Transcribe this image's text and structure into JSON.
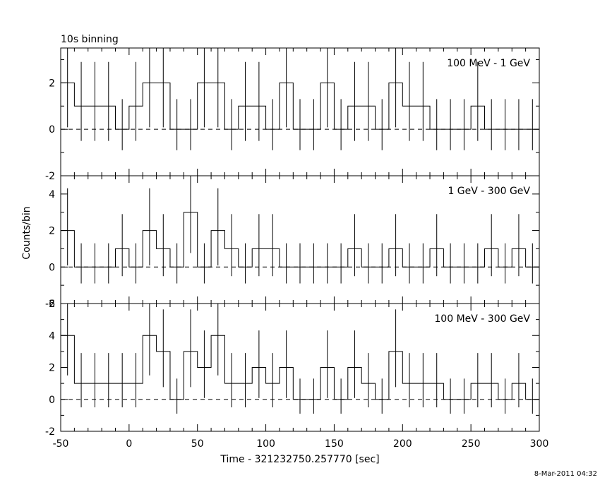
{
  "header": {
    "binning_label": "10s binning",
    "timestamp": "8-Mar-2011 04:32"
  },
  "chart_data": [
    {
      "type": "line",
      "panel_label": "100 MeV - 1 GeV",
      "ylim": [
        -2,
        3.5
      ],
      "yticks": [
        -2,
        0,
        2
      ],
      "x": [
        -45,
        -35,
        -25,
        -15,
        -5,
        5,
        15,
        25,
        35,
        45,
        55,
        65,
        75,
        85,
        95,
        105,
        115,
        125,
        135,
        145,
        155,
        165,
        175,
        185,
        195,
        205,
        215,
        225,
        235,
        245,
        255,
        265,
        275,
        285,
        295
      ],
      "values": [
        2,
        1,
        1,
        1,
        0,
        1,
        2,
        2,
        0,
        0,
        2,
        2,
        0,
        1,
        1,
        0,
        2,
        0,
        0,
        2,
        0,
        1,
        1,
        0,
        2,
        1,
        1,
        0,
        0,
        0,
        1,
        0,
        0,
        0,
        0
      ]
    },
    {
      "type": "line",
      "panel_label": "1 GeV - 300 GeV",
      "ylim": [
        -2,
        5
      ],
      "yticks": [
        -2,
        0,
        2,
        4
      ],
      "x": [
        -45,
        -35,
        -25,
        -15,
        -5,
        5,
        15,
        25,
        35,
        45,
        55,
        65,
        75,
        85,
        95,
        105,
        115,
        125,
        135,
        145,
        155,
        165,
        175,
        185,
        195,
        205,
        215,
        225,
        235,
        245,
        255,
        265,
        275,
        285,
        295
      ],
      "values": [
        2,
        0,
        0,
        0,
        1,
        0,
        2,
        1,
        0,
        3,
        0,
        2,
        1,
        0,
        1,
        1,
        0,
        0,
        0,
        0,
        0,
        1,
        0,
        0,
        1,
        0,
        0,
        1,
        0,
        0,
        0,
        1,
        0,
        1,
        0
      ]
    },
    {
      "type": "line",
      "panel_label": "100 MeV - 300 GeV",
      "ylim": [
        -2,
        6
      ],
      "yticks": [
        -2,
        0,
        2,
        4,
        6
      ],
      "x": [
        -45,
        -35,
        -25,
        -15,
        -5,
        5,
        15,
        25,
        35,
        45,
        55,
        65,
        75,
        85,
        95,
        105,
        115,
        125,
        135,
        145,
        155,
        165,
        175,
        185,
        195,
        205,
        215,
        225,
        235,
        245,
        255,
        265,
        275,
        285,
        295
      ],
      "values": [
        4,
        1,
        1,
        1,
        1,
        1,
        4,
        3,
        0,
        3,
        2,
        4,
        1,
        1,
        2,
        1,
        2,
        0,
        0,
        2,
        0,
        2,
        1,
        0,
        3,
        1,
        1,
        1,
        0,
        0,
        1,
        1,
        0,
        1,
        0
      ]
    }
  ],
  "axes": {
    "xlim": [
      -50,
      300
    ],
    "xticks": [
      -50,
      0,
      50,
      100,
      150,
      200,
      250,
      300
    ],
    "xlabel": "Time - 321232750.257770 [sec]",
    "ylabel": "Counts/bin"
  }
}
